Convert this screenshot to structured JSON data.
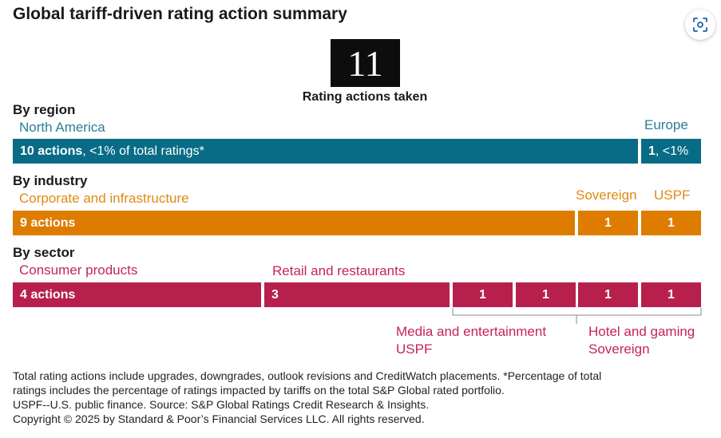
{
  "title": "Global tariff-driven rating action summary",
  "total": {
    "value": "11",
    "caption": "Rating actions taken"
  },
  "colors": {
    "teal": "#086c87",
    "orange": "#de7c00",
    "pink": "#b71f4c"
  },
  "region": {
    "heading": "By region",
    "north_america": {
      "label": "North America",
      "count_text": "10 actions",
      "detail": ", <1% of total ratings*"
    },
    "europe": {
      "label": "Europe",
      "count_text": "1",
      "detail": ", <1%"
    }
  },
  "industry": {
    "heading": "By industry",
    "corporate": {
      "label": "Corporate and infrastructure",
      "value_text": "9 actions"
    },
    "sovereign": {
      "label": "Sovereign",
      "value_text": "1"
    },
    "uspf": {
      "label": "USPF",
      "value_text": "1"
    }
  },
  "sector": {
    "heading": "By sector",
    "consumer": {
      "label": "Consumer products",
      "value_text": "4 actions"
    },
    "retail": {
      "label": "Retail and restaurants",
      "value_text": "3"
    },
    "media": {
      "value_text": "1"
    },
    "uspf": {
      "value_text": "1"
    },
    "hotel": {
      "value_text": "1"
    },
    "sovereign": {
      "value_text": "1"
    },
    "group1_labels": [
      "Media and entertainment",
      "USPF"
    ],
    "group2_labels": [
      "Hotel and gaming",
      "Sovereign"
    ]
  },
  "chart_data": {
    "type": "bar",
    "title": "Global tariff-driven rating action summary",
    "total": 11,
    "series": [
      {
        "name": "By region",
        "categories": [
          "North America",
          "Europe"
        ],
        "values": [
          10,
          1
        ]
      },
      {
        "name": "By industry",
        "categories": [
          "Corporate and infrastructure",
          "Sovereign",
          "USPF"
        ],
        "values": [
          9,
          1,
          1
        ]
      },
      {
        "name": "By sector",
        "categories": [
          "Consumer products",
          "Retail and restaurants",
          "Media and entertainment",
          "USPF",
          "Hotel and gaming",
          "Sovereign"
        ],
        "values": [
          4,
          3,
          1,
          1,
          1,
          1
        ]
      }
    ]
  },
  "footnote": {
    "line1": "Total rating actions include upgrades, downgrades, outlook revisions and CreditWatch placements. *Percentage of total",
    "line2": "ratings includes the percentage of ratings impacted by tariffs on the total S&P Global rated portfolio.",
    "line3": "USPF--U.S. public finance. Source: S&P Global Ratings Credit Research & Insights.",
    "line4": "Copyright © 2025 by Standard & Poor’s Financial Services LLC. All rights reserved."
  }
}
